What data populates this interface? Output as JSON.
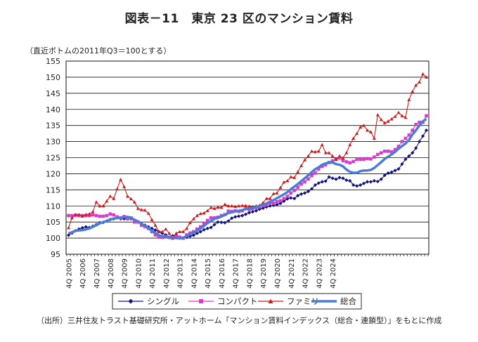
{
  "title": "図表－11　東京 23 区のマンション賃料",
  "note": "（直近ボトムの2011年Q3＝100とする）",
  "source": "（出所）三井住友トラスト基礎研究所・アットホーム「マンション賃料インデックス（総合・連鎖型）」をもとに作成",
  "chart_data": {
    "type": "line",
    "title": "東京 23 区のマンション賃料",
    "xlabel": "",
    "ylabel": "",
    "ylim": [
      95,
      155
    ],
    "yticks": [
      95,
      100,
      105,
      110,
      115,
      120,
      125,
      130,
      135,
      140,
      145,
      150,
      155
    ],
    "x_start": "2005Q4",
    "x_end": "2024Q4",
    "xtick_labels": [
      "4Q 2005",
      "4Q 2006",
      "4Q 2007",
      "4Q 2008",
      "4Q 2009",
      "4Q 2010",
      "4Q 2011",
      "4Q 2012",
      "4Q 2013",
      "4Q 2014",
      "4Q 2015",
      "4Q 2016",
      "4Q 2017",
      "4Q 2018",
      "4Q 2019",
      "4Q 2020",
      "4Q 2021",
      "4Q 2022",
      "4Q 2023",
      "4Q 2024"
    ],
    "legend_position": "bottom",
    "series": [
      {
        "name": "シングル",
        "color": "#14147a",
        "marker": "diamond",
        "values": [
          100.9,
          101.6,
          102.3,
          102.8,
          103.2,
          103.5,
          103.3,
          103.7,
          104.2,
          104.8,
          104.9,
          105.3,
          105.8,
          106.0,
          106.3,
          106.0,
          106.0,
          106.0,
          106.0,
          105.5,
          105.0,
          104.5,
          104.0,
          103.5,
          103.0,
          102.5,
          102.0,
          101.5,
          101.0,
          100.3,
          100.7,
          101.0,
          100.0,
          100.0,
          100.3,
          100.6,
          100.9,
          101.5,
          102.0,
          102.6,
          103.0,
          103.3,
          104.2,
          105.0,
          104.9,
          104.8,
          105.3,
          106.2,
          106.6,
          106.8,
          107.0,
          107.4,
          107.9,
          108.2,
          108.5,
          109.0,
          109.3,
          109.7,
          110.0,
          110.2,
          110.4,
          110.8,
          111.5,
          112.2,
          112.5,
          112.3,
          113.2,
          113.7,
          114.0,
          114.5,
          115.3,
          116.5,
          117.1,
          117.5,
          117.7,
          119.0,
          118.6,
          118.3,
          118.8,
          118.6,
          118.0,
          117.8,
          116.5,
          116.2,
          116.5,
          117.0,
          117.5,
          117.5,
          117.8,
          117.6,
          118.3,
          119.5,
          120.2,
          120.5,
          121.0,
          121.5,
          123.0,
          124.5,
          125.5,
          126.5,
          128.0,
          130.0,
          131.7,
          133.5
        ]
      },
      {
        "name": "コンパクト",
        "color": "#d63cc9",
        "marker": "square",
        "values": [
          107.0,
          107.0,
          107.1,
          107.0,
          107.0,
          107.0,
          107.0,
          107.2,
          107.0,
          106.8,
          106.8,
          107.0,
          107.5,
          107.2,
          106.6,
          106.3,
          106.7,
          106.0,
          106.3,
          105.0,
          105.0,
          104.0,
          103.6,
          103.0,
          102.0,
          101.0,
          100.3,
          100.2,
          100.5,
          100.2,
          100.2,
          100.5,
          100.3,
          100.0,
          101.0,
          101.6,
          102.0,
          102.8,
          103.5,
          104.5,
          105.5,
          106.3,
          106.3,
          106.5,
          107.0,
          107.3,
          108.4,
          108.3,
          108.5,
          108.3,
          108.5,
          109.5,
          108.9,
          109.2,
          109.5,
          109.7,
          110.1,
          110.3,
          111.0,
          110.8,
          111.3,
          111.6,
          112.3,
          113.0,
          114.0,
          114.8,
          115.8,
          116.8,
          117.5,
          118.4,
          119.4,
          120.2,
          121.5,
          122.3,
          122.8,
          123.5,
          124.0,
          124.4,
          124.9,
          124.1,
          123.7,
          123.4,
          123.8,
          124.5,
          124.5,
          124.5,
          124.7,
          124.6,
          125.2,
          126.0,
          126.5,
          127.0,
          127.0,
          126.8,
          127.5,
          128.5,
          130.0,
          131.0,
          132.0,
          133.5,
          135.3,
          136.0,
          136.0,
          138.0
        ]
      },
      {
        "name": "ファミリー",
        "color": "#cc1c1c",
        "marker": "triangle",
        "values": [
          103.2,
          106.3,
          107.3,
          107.3,
          106.8,
          107.3,
          107.5,
          108.2,
          111.2,
          110.0,
          110.0,
          111.5,
          113.0,
          112.3,
          115.3,
          118.2,
          116.0,
          113.0,
          112.2,
          111.2,
          109.2,
          108.8,
          108.7,
          107.7,
          105.7,
          104.0,
          102.0,
          102.0,
          102.8,
          101.5,
          100.0,
          101.5,
          102.0,
          102.0,
          103.0,
          104.8,
          106.0,
          107.0,
          107.6,
          107.8,
          108.5,
          109.5,
          109.2,
          109.6,
          109.5,
          110.5,
          110.0,
          110.0,
          109.8,
          110.0,
          110.1,
          110.1,
          109.9,
          109.7,
          110.0,
          110.2,
          111.0,
          112.3,
          112.3,
          113.8,
          114.0,
          115.7,
          117.4,
          117.8,
          119.0,
          118.8,
          120.6,
          122.5,
          124.3,
          125.5,
          127.0,
          126.8,
          127.0,
          129.0,
          126.5,
          126.5,
          125.5,
          124.5,
          125.5,
          124.9,
          126.5,
          129.0,
          131.0,
          132.5,
          134.5,
          135.0,
          133.5,
          133.0,
          131.0,
          138.3,
          136.8,
          135.8,
          136.3,
          137.0,
          137.8,
          139.0,
          138.0,
          137.5,
          143.0,
          145.5,
          147.5,
          148.5,
          151.0,
          150.0
        ]
      },
      {
        "name": "総合",
        "color": "#4a7cd6",
        "marker": "none",
        "values": [
          101.5,
          101.8,
          102.3,
          102.4,
          102.5,
          102.7,
          103.0,
          103.5,
          104.0,
          104.6,
          105.0,
          105.3,
          105.8,
          106.0,
          106.3,
          106.3,
          106.5,
          106.6,
          106.3,
          105.7,
          105.2,
          104.5,
          103.8,
          103.0,
          102.3,
          101.6,
          100.9,
          100.5,
          100.5,
          100.2,
          100.2,
          100.0,
          100.0,
          100.1,
          100.6,
          101.2,
          101.7,
          102.3,
          103.0,
          103.8,
          104.7,
          105.3,
          106.0,
          106.3,
          106.7,
          107.2,
          107.8,
          108.0,
          108.3,
          108.5,
          108.7,
          109.0,
          109.2,
          109.4,
          109.6,
          110.0,
          110.3,
          110.8,
          111.3,
          111.8,
          112.4,
          113.0,
          113.6,
          114.3,
          115.2,
          116.0,
          116.8,
          117.7,
          118.6,
          119.5,
          120.5,
          121.4,
          122.0,
          122.8,
          123.2,
          123.5,
          123.5,
          123.0,
          122.8,
          122.3,
          121.3,
          120.6,
          120.3,
          120.3,
          120.8,
          121.0,
          121.0,
          121.2,
          121.8,
          122.7,
          123.6,
          124.6,
          125.3,
          126.0,
          126.8,
          127.8,
          128.6,
          129.4,
          130.5,
          132.2,
          133.5,
          135.0,
          136.3,
          137.0
        ]
      }
    ]
  }
}
